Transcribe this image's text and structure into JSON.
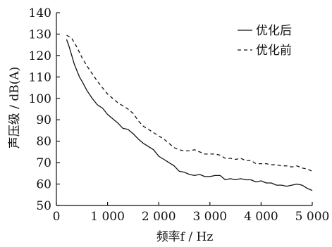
{
  "chart_data": {
    "type": "line",
    "xlabel": "频率f / Hz",
    "ylabel": "声压级 / dB(A)",
    "xlim": [
      0,
      5000
    ],
    "ylim": [
      50,
      140
    ],
    "x_ticks": [
      0,
      1000,
      2000,
      3000,
      4000,
      5000
    ],
    "x_tick_labels": [
      "0",
      "1 000",
      "2 000",
      "3 000",
      "4 000",
      "5 000"
    ],
    "y_ticks": [
      50,
      60,
      70,
      80,
      90,
      100,
      110,
      120,
      130,
      140
    ],
    "y_tick_labels": [
      "50",
      "60",
      "70",
      "80",
      "90",
      "100",
      "110",
      "120",
      "130",
      "140"
    ],
    "grid": false,
    "legend": "top-right",
    "series": [
      {
        "name": "优化后",
        "style": "solid",
        "color": "#111111",
        "x": [
          200,
          250,
          300,
          350,
          400,
          450,
          500,
          600,
          700,
          800,
          900,
          1000,
          1100,
          1200,
          1300,
          1400,
          1500,
          1600,
          1700,
          1800,
          1900,
          2000,
          2100,
          2200,
          2300,
          2400,
          2500,
          2600,
          2700,
          2800,
          2900,
          3000,
          3100,
          3200,
          3300,
          3400,
          3500,
          3600,
          3700,
          3800,
          3900,
          4000,
          4100,
          4200,
          4300,
          4400,
          4500,
          4600,
          4700,
          4800,
          4900,
          5000
        ],
        "y": [
          127.5,
          124,
          120,
          116,
          113,
          110,
          108,
          103.5,
          100,
          97,
          95.5,
          92.5,
          90.5,
          88.5,
          86,
          85.5,
          83.5,
          81,
          79,
          77.5,
          76,
          73,
          71.5,
          70,
          68.5,
          66,
          65.5,
          64.5,
          64,
          64.5,
          63.5,
          63.5,
          64,
          64,
          62,
          62.5,
          62,
          62.5,
          62,
          62,
          61,
          61.5,
          60.5,
          60.5,
          59.5,
          59.5,
          59,
          59.5,
          60,
          59.5,
          58,
          57
        ]
      },
      {
        "name": "优化前",
        "style": "dashed",
        "color": "#111111",
        "x": [
          200,
          300,
          400,
          500,
          600,
          700,
          800,
          900,
          1000,
          1100,
          1200,
          1300,
          1400,
          1500,
          1600,
          1700,
          1800,
          1900,
          2000,
          2100,
          2200,
          2300,
          2400,
          2500,
          2600,
          2700,
          2800,
          2900,
          3000,
          3100,
          3200,
          3300,
          3400,
          3500,
          3600,
          3700,
          3800,
          3900,
          4000,
          4100,
          4200,
          4300,
          4400,
          4500,
          4600,
          4700,
          4800,
          4900,
          5000
        ],
        "y": [
          129.5,
          128,
          124,
          119,
          115,
          111.5,
          108,
          105,
          102,
          100,
          98,
          96.5,
          95,
          93,
          89.5,
          87,
          85.5,
          84,
          82.5,
          81,
          79,
          77,
          76,
          75.5,
          75.5,
          76,
          75,
          74,
          74,
          74,
          73.5,
          72,
          72,
          71.5,
          72,
          71,
          71,
          69.5,
          69.5,
          69.5,
          69,
          69,
          68.5,
          68.5,
          68,
          68.5,
          67.5,
          67,
          66
        ]
      }
    ]
  }
}
